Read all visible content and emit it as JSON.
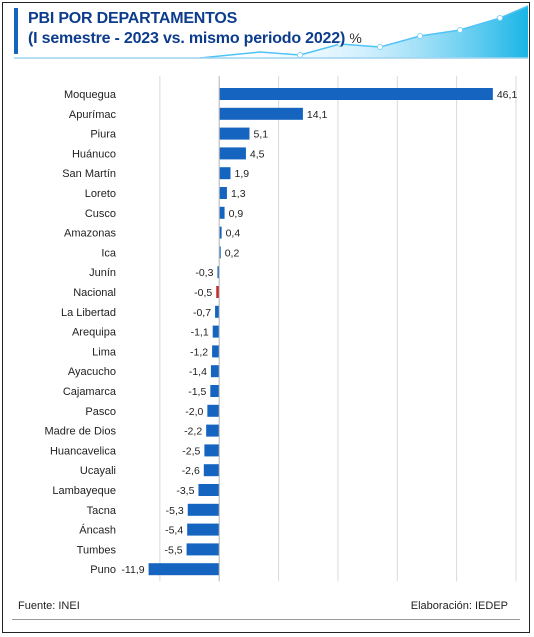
{
  "title": {
    "line1": "PBI POR DEPARTAMENTOS",
    "line2": "(I semestre  - 2023 vs. mismo periodo 2022)",
    "unit": "%"
  },
  "colors": {
    "bar": "#1565c0",
    "highlight": "#c62828",
    "title": "#0d3c8c",
    "accent": "#19b5e6"
  },
  "chart_data": {
    "type": "bar",
    "orientation": "horizontal",
    "categories": [
      "Moquegua",
      "Apurímac",
      "Piura",
      "Huánuco",
      "San Martín",
      "Loreto",
      "Cusco",
      "Amazonas",
      "Ica",
      "Junín",
      "Nacional",
      "La Libertad",
      "Arequipa",
      "Lima",
      "Ayacucho",
      "Cajamarca",
      "Pasco",
      "Madre de Dios",
      "Huancavelica",
      "Ucayali",
      "Lambayeque",
      "Tacna",
      "Áncash",
      "Tumbes",
      "Puno"
    ],
    "values": [
      46.1,
      14.1,
      5.1,
      4.5,
      1.9,
      1.3,
      0.9,
      0.4,
      0.2,
      -0.3,
      -0.5,
      -0.7,
      -1.1,
      -1.2,
      -1.4,
      -1.5,
      -2.0,
      -2.2,
      -2.5,
      -2.6,
      -3.5,
      -5.3,
      -5.4,
      -5.5,
      -11.9
    ],
    "data_labels": [
      "46,1",
      "14,1",
      "5,1",
      "4,5",
      "1,9",
      "1,3",
      "0,9",
      "0,4",
      "0,2",
      "-0,3",
      "-0,5",
      "-0,7",
      "-1,1",
      "-1,2",
      "-1,4",
      "-1,5",
      "-2,0",
      "-2,2",
      "-2,5",
      "-2,6",
      "-3,5",
      "-5,3",
      "-5,4",
      "-5,5",
      "-11,9"
    ],
    "highlight": "Nacional",
    "xlim": [
      -12,
      50
    ],
    "grid": "vertical"
  },
  "footer": {
    "source": "Fuente: INEI",
    "credit": "Elaboración: IEDEP"
  }
}
